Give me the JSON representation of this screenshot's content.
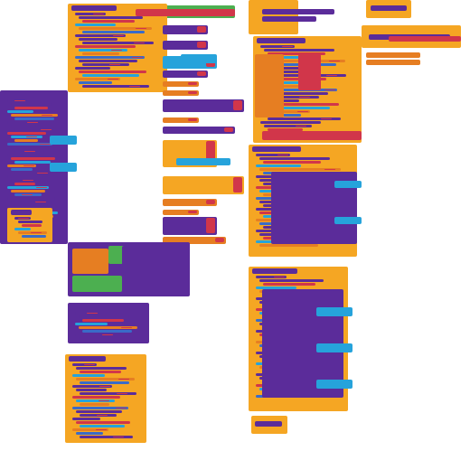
{
  "workspace": {
    "type": "block-editor",
    "text_legible": false,
    "note_visible": "",
    "colors": {
      "control": "#F5A623",
      "procedure": "#5B2C9A",
      "text": "#D1364A",
      "math": "#3A6BC8",
      "logic": "#4CAF50",
      "variable": "#E67E22",
      "component": "#26A3DB",
      "comment_bg": "#FFFFFF"
    },
    "stacks": [
      {
        "kind": "procedure",
        "blocks": 28
      },
      {
        "kind": "event",
        "blocks": 18
      },
      {
        "kind": "procedure",
        "blocks": 34
      },
      {
        "kind": "event",
        "blocks": 14
      },
      {
        "kind": "procedure",
        "blocks": 40
      },
      {
        "kind": "procedure",
        "blocks": 12
      },
      {
        "kind": "procedure",
        "blocks": 22
      },
      {
        "kind": "procedure",
        "blocks": 16
      }
    ]
  }
}
